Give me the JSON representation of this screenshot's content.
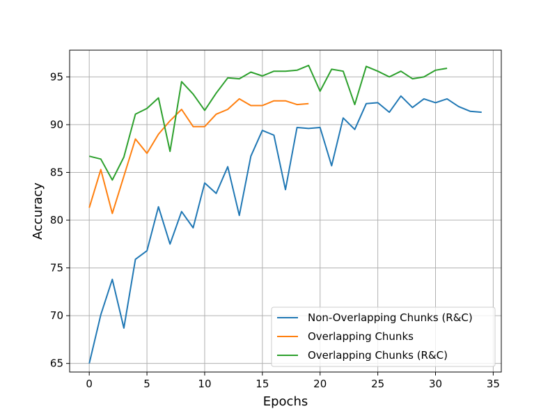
{
  "chart_data": {
    "type": "line",
    "xlabel": "Epochs",
    "ylabel": "Accuracy",
    "xlim": [
      -1.7,
      35.7
    ],
    "ylim": [
      64.1,
      97.8
    ],
    "xticks": [
      0,
      5,
      10,
      15,
      20,
      25,
      30,
      35
    ],
    "yticks": [
      65,
      70,
      75,
      80,
      85,
      90,
      95
    ],
    "grid": true,
    "legend_position": "lower-right",
    "series": [
      {
        "name": "Non-Overlapping Chunks (R&C)",
        "color": "#1f77b4",
        "x": [
          0,
          1,
          2,
          3,
          4,
          5,
          6,
          7,
          8,
          9,
          10,
          11,
          12,
          13,
          14,
          15,
          16,
          17,
          18,
          19,
          20,
          21,
          22,
          23,
          24,
          25,
          26,
          27,
          28,
          29,
          30,
          31,
          32,
          33,
          34
        ],
        "values": [
          65.0,
          70.1,
          73.8,
          68.7,
          75.9,
          76.8,
          81.4,
          77.5,
          80.9,
          79.2,
          83.9,
          82.8,
          85.6,
          80.5,
          86.7,
          89.4,
          88.9,
          83.2,
          89.7,
          89.6,
          89.7,
          85.7,
          90.7,
          89.5,
          92.2,
          92.3,
          91.3,
          93.0,
          91.8,
          92.7,
          92.3,
          92.7,
          91.9,
          91.4,
          91.3
        ]
      },
      {
        "name": "Overlapping Chunks",
        "color": "#ff7f0e",
        "x": [
          0,
          1,
          2,
          3,
          4,
          5,
          6,
          7,
          8,
          9,
          10,
          11,
          12,
          13,
          14,
          15,
          16,
          17,
          18,
          19
        ],
        "values": [
          81.3,
          85.3,
          80.7,
          84.6,
          88.5,
          87.0,
          89.0,
          90.4,
          91.6,
          89.8,
          89.8,
          91.1,
          91.6,
          92.7,
          92.0,
          92.0,
          92.5,
          92.5,
          92.1,
          92.2
        ]
      },
      {
        "name": "Overlapping Chunks (R&C)",
        "color": "#2ca02c",
        "x": [
          0,
          1,
          2,
          3,
          4,
          5,
          6,
          7,
          8,
          9,
          10,
          11,
          12,
          13,
          14,
          15,
          16,
          17,
          18,
          19,
          20,
          21,
          22,
          23,
          24,
          25,
          26,
          27,
          28,
          29,
          30,
          31
        ],
        "values": [
          86.7,
          86.4,
          84.2,
          86.6,
          91.1,
          91.7,
          92.8,
          87.2,
          94.5,
          93.2,
          91.5,
          93.3,
          94.9,
          94.8,
          95.5,
          95.1,
          95.6,
          95.6,
          95.7,
          96.2,
          93.5,
          95.8,
          95.6,
          92.1,
          96.1,
          95.6,
          95.0,
          95.6,
          94.8,
          95.0,
          95.7,
          95.9
        ]
      }
    ]
  }
}
